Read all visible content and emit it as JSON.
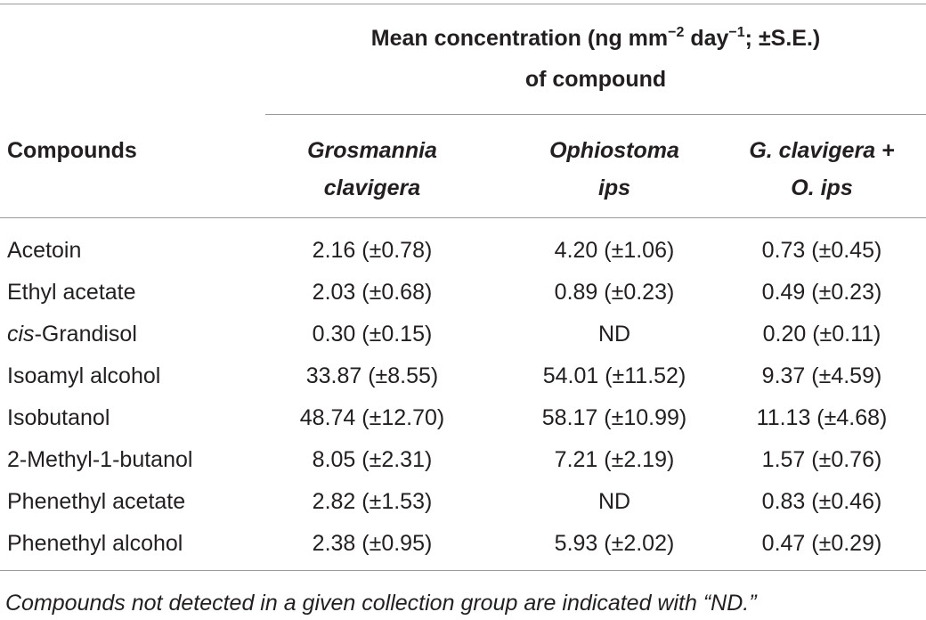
{
  "header": {
    "span_title_line1_a": "Mean concentration (ng mm",
    "span_title_sup1": "−2",
    "span_title_line1_b": " day",
    "span_title_sup2": "−1",
    "span_title_line1_c": "; ±S.E.)",
    "span_title_line2": "of compound",
    "col0": "Compounds",
    "col1_line1": "Grosmannia",
    "col1_line2": "clavigera",
    "col2_line1": "Ophiostoma",
    "col2_line2": "ips",
    "col3_line1": "G. clavigera +",
    "col3_line2": "O. ips"
  },
  "rows": [
    {
      "prefix": "",
      "italic_part": "",
      "name": "Acetoin",
      "c1": "2.16 (±0.78)",
      "c2": "4.20 (±1.06)",
      "c3": "0.73 (±0.45)"
    },
    {
      "prefix": "",
      "italic_part": "",
      "name": "Ethyl acetate",
      "c1": "2.03 (±0.68)",
      "c2": "0.89 (±0.23)",
      "c3": "0.49 (±0.23)"
    },
    {
      "prefix": "",
      "italic_part": "cis",
      "name": "-Grandisol",
      "c1": "0.30 (±0.15)",
      "c2": "ND",
      "c3": "0.20 (±0.11)"
    },
    {
      "prefix": "",
      "italic_part": "",
      "name": "Isoamyl alcohol",
      "c1": "33.87 (±8.55)",
      "c2": "54.01 (±11.52)",
      "c3": "9.37 (±4.59)"
    },
    {
      "prefix": "",
      "italic_part": "",
      "name": "Isobutanol",
      "c1": "48.74 (±12.70)",
      "c2": "58.17 (±10.99)",
      "c3": "11.13 (±4.68)"
    },
    {
      "prefix": "",
      "italic_part": "",
      "name": "2-Methyl-1-butanol",
      "c1": "8.05 (±2.31)",
      "c2": "7.21 (±2.19)",
      "c3": "1.57 (±0.76)"
    },
    {
      "prefix": "",
      "italic_part": "",
      "name": "Phenethyl acetate",
      "c1": "2.82 (±1.53)",
      "c2": "ND",
      "c3": "0.83 (±0.46)"
    },
    {
      "prefix": "",
      "italic_part": "",
      "name": "Phenethyl alcohol",
      "c1": "2.38 (±0.95)",
      "c2": "5.93 (±2.02)",
      "c3": "0.47 (±0.29)"
    }
  ],
  "footnote": "Compounds not detected in a given collection group are indicated with “ND.”"
}
